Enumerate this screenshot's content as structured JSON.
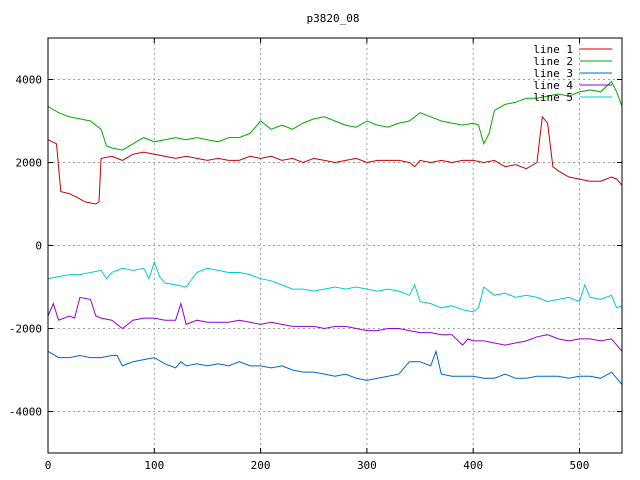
{
  "chart_data": {
    "type": "line",
    "title": "p3820_08",
    "xlabel": "",
    "ylabel": "",
    "xlim": [
      0,
      540
    ],
    "ylim": [
      -5000,
      5000
    ],
    "x_ticks": [
      0,
      100,
      200,
      300,
      400,
      500
    ],
    "y_ticks": [
      -4000,
      -2000,
      0,
      2000,
      4000
    ],
    "grid": true,
    "legend_position": "top-right",
    "series": [
      {
        "name": "line 1",
        "color": "#cc0000",
        "points": [
          [
            0,
            2550
          ],
          [
            8,
            2450
          ],
          [
            12,
            1300
          ],
          [
            20,
            1250
          ],
          [
            28,
            1150
          ],
          [
            35,
            1050
          ],
          [
            45,
            1000
          ],
          [
            48,
            1050
          ],
          [
            50,
            2100
          ],
          [
            60,
            2150
          ],
          [
            70,
            2050
          ],
          [
            80,
            2200
          ],
          [
            90,
            2250
          ],
          [
            100,
            2200
          ],
          [
            110,
            2150
          ],
          [
            120,
            2100
          ],
          [
            130,
            2150
          ],
          [
            140,
            2100
          ],
          [
            150,
            2050
          ],
          [
            160,
            2100
          ],
          [
            170,
            2050
          ],
          [
            180,
            2050
          ],
          [
            190,
            2150
          ],
          [
            200,
            2100
          ],
          [
            210,
            2150
          ],
          [
            220,
            2050
          ],
          [
            230,
            2100
          ],
          [
            240,
            2000
          ],
          [
            250,
            2100
          ],
          [
            260,
            2050
          ],
          [
            270,
            2000
          ],
          [
            280,
            2050
          ],
          [
            290,
            2100
          ],
          [
            300,
            2000
          ],
          [
            310,
            2050
          ],
          [
            320,
            2050
          ],
          [
            330,
            2050
          ],
          [
            340,
            2000
          ],
          [
            345,
            1900
          ],
          [
            350,
            2050
          ],
          [
            360,
            2000
          ],
          [
            370,
            2050
          ],
          [
            380,
            2000
          ],
          [
            390,
            2050
          ],
          [
            400,
            2050
          ],
          [
            410,
            2000
          ],
          [
            420,
            2050
          ],
          [
            430,
            1900
          ],
          [
            440,
            1950
          ],
          [
            450,
            1850
          ],
          [
            460,
            2000
          ],
          [
            465,
            3100
          ],
          [
            470,
            2950
          ],
          [
            475,
            1900
          ],
          [
            480,
            1800
          ],
          [
            490,
            1650
          ],
          [
            500,
            1600
          ],
          [
            510,
            1550
          ],
          [
            520,
            1550
          ],
          [
            530,
            1650
          ],
          [
            535,
            1600
          ],
          [
            540,
            1450
          ]
        ]
      },
      {
        "name": "line 2",
        "color": "#00aa00",
        "points": [
          [
            0,
            3350
          ],
          [
            10,
            3200
          ],
          [
            20,
            3100
          ],
          [
            30,
            3050
          ],
          [
            40,
            3000
          ],
          [
            50,
            2800
          ],
          [
            55,
            2400
          ],
          [
            60,
            2350
          ],
          [
            70,
            2300
          ],
          [
            80,
            2450
          ],
          [
            90,
            2600
          ],
          [
            100,
            2500
          ],
          [
            110,
            2550
          ],
          [
            120,
            2600
          ],
          [
            130,
            2550
          ],
          [
            140,
            2600
          ],
          [
            150,
            2550
          ],
          [
            160,
            2500
          ],
          [
            170,
            2600
          ],
          [
            180,
            2600
          ],
          [
            190,
            2700
          ],
          [
            200,
            3000
          ],
          [
            210,
            2800
          ],
          [
            220,
            2900
          ],
          [
            230,
            2800
          ],
          [
            240,
            2950
          ],
          [
            250,
            3050
          ],
          [
            260,
            3100
          ],
          [
            270,
            3000
          ],
          [
            280,
            2900
          ],
          [
            290,
            2850
          ],
          [
            300,
            3000
          ],
          [
            310,
            2900
          ],
          [
            320,
            2850
          ],
          [
            330,
            2950
          ],
          [
            340,
            3000
          ],
          [
            350,
            3200
          ],
          [
            360,
            3100
          ],
          [
            370,
            3000
          ],
          [
            380,
            2950
          ],
          [
            390,
            2900
          ],
          [
            400,
            2950
          ],
          [
            405,
            2900
          ],
          [
            410,
            2450
          ],
          [
            415,
            2700
          ],
          [
            420,
            3250
          ],
          [
            430,
            3400
          ],
          [
            440,
            3450
          ],
          [
            450,
            3550
          ],
          [
            460,
            3550
          ],
          [
            470,
            3600
          ],
          [
            480,
            3650
          ],
          [
            490,
            3600
          ],
          [
            500,
            3700
          ],
          [
            510,
            3750
          ],
          [
            520,
            3700
          ],
          [
            530,
            3950
          ],
          [
            535,
            3700
          ],
          [
            540,
            3350
          ]
        ]
      },
      {
        "name": "line 3",
        "color": "#0066cc",
        "points": [
          [
            0,
            -2550
          ],
          [
            10,
            -2700
          ],
          [
            20,
            -2700
          ],
          [
            30,
            -2650
          ],
          [
            40,
            -2700
          ],
          [
            50,
            -2700
          ],
          [
            60,
            -2650
          ],
          [
            65,
            -2650
          ],
          [
            70,
            -2900
          ],
          [
            80,
            -2800
          ],
          [
            90,
            -2750
          ],
          [
            100,
            -2700
          ],
          [
            110,
            -2850
          ],
          [
            120,
            -2950
          ],
          [
            125,
            -2800
          ],
          [
            130,
            -2900
          ],
          [
            140,
            -2850
          ],
          [
            150,
            -2900
          ],
          [
            160,
            -2850
          ],
          [
            170,
            -2900
          ],
          [
            180,
            -2800
          ],
          [
            190,
            -2900
          ],
          [
            200,
            -2900
          ],
          [
            210,
            -2950
          ],
          [
            220,
            -2900
          ],
          [
            230,
            -3000
          ],
          [
            240,
            -3050
          ],
          [
            250,
            -3050
          ],
          [
            260,
            -3100
          ],
          [
            270,
            -3150
          ],
          [
            280,
            -3100
          ],
          [
            290,
            -3200
          ],
          [
            300,
            -3250
          ],
          [
            310,
            -3200
          ],
          [
            320,
            -3150
          ],
          [
            330,
            -3100
          ],
          [
            340,
            -2800
          ],
          [
            350,
            -2800
          ],
          [
            360,
            -2900
          ],
          [
            365,
            -2550
          ],
          [
            370,
            -3100
          ],
          [
            380,
            -3150
          ],
          [
            390,
            -3150
          ],
          [
            400,
            -3150
          ],
          [
            410,
            -3200
          ],
          [
            420,
            -3200
          ],
          [
            430,
            -3100
          ],
          [
            440,
            -3200
          ],
          [
            450,
            -3200
          ],
          [
            460,
            -3150
          ],
          [
            470,
            -3150
          ],
          [
            480,
            -3150
          ],
          [
            490,
            -3200
          ],
          [
            500,
            -3150
          ],
          [
            510,
            -3150
          ],
          [
            520,
            -3200
          ],
          [
            530,
            -3050
          ],
          [
            540,
            -3350
          ]
        ]
      },
      {
        "name": "line 4",
        "color": "#9900cc",
        "points": [
          [
            0,
            -1700
          ],
          [
            5,
            -1400
          ],
          [
            10,
            -1800
          ],
          [
            20,
            -1700
          ],
          [
            25,
            -1750
          ],
          [
            30,
            -1250
          ],
          [
            40,
            -1300
          ],
          [
            45,
            -1700
          ],
          [
            50,
            -1750
          ],
          [
            60,
            -1800
          ],
          [
            70,
            -2000
          ],
          [
            80,
            -1800
          ],
          [
            90,
            -1750
          ],
          [
            100,
            -1750
          ],
          [
            110,
            -1800
          ],
          [
            120,
            -1800
          ],
          [
            125,
            -1400
          ],
          [
            130,
            -1900
          ],
          [
            140,
            -1800
          ],
          [
            150,
            -1850
          ],
          [
            160,
            -1850
          ],
          [
            170,
            -1850
          ],
          [
            180,
            -1800
          ],
          [
            190,
            -1850
          ],
          [
            200,
            -1900
          ],
          [
            210,
            -1850
          ],
          [
            220,
            -1900
          ],
          [
            230,
            -1950
          ],
          [
            240,
            -1950
          ],
          [
            250,
            -1950
          ],
          [
            260,
            -2000
          ],
          [
            270,
            -1950
          ],
          [
            280,
            -1950
          ],
          [
            290,
            -2000
          ],
          [
            300,
            -2050
          ],
          [
            310,
            -2050
          ],
          [
            320,
            -2000
          ],
          [
            330,
            -2000
          ],
          [
            340,
            -2050
          ],
          [
            350,
            -2100
          ],
          [
            360,
            -2100
          ],
          [
            370,
            -2150
          ],
          [
            380,
            -2150
          ],
          [
            390,
            -2400
          ],
          [
            395,
            -2250
          ],
          [
            400,
            -2300
          ],
          [
            410,
            -2300
          ],
          [
            420,
            -2350
          ],
          [
            430,
            -2400
          ],
          [
            440,
            -2350
          ],
          [
            450,
            -2300
          ],
          [
            460,
            -2200
          ],
          [
            470,
            -2150
          ],
          [
            480,
            -2250
          ],
          [
            490,
            -2300
          ],
          [
            500,
            -2250
          ],
          [
            510,
            -2250
          ],
          [
            520,
            -2300
          ],
          [
            530,
            -2250
          ],
          [
            535,
            -2400
          ],
          [
            540,
            -2550
          ]
        ]
      },
      {
        "name": "line 5",
        "color": "#00cccc",
        "points": [
          [
            0,
            -800
          ],
          [
            10,
            -750
          ],
          [
            20,
            -700
          ],
          [
            30,
            -700
          ],
          [
            40,
            -650
          ],
          [
            50,
            -600
          ],
          [
            55,
            -800
          ],
          [
            60,
            -650
          ],
          [
            70,
            -550
          ],
          [
            80,
            -600
          ],
          [
            90,
            -550
          ],
          [
            95,
            -800
          ],
          [
            100,
            -400
          ],
          [
            105,
            -750
          ],
          [
            110,
            -900
          ],
          [
            120,
            -950
          ],
          [
            130,
            -1000
          ],
          [
            140,
            -650
          ],
          [
            150,
            -550
          ],
          [
            160,
            -600
          ],
          [
            170,
            -650
          ],
          [
            180,
            -650
          ],
          [
            190,
            -700
          ],
          [
            200,
            -800
          ],
          [
            210,
            -850
          ],
          [
            220,
            -950
          ],
          [
            230,
            -1050
          ],
          [
            240,
            -1050
          ],
          [
            250,
            -1100
          ],
          [
            260,
            -1050
          ],
          [
            270,
            -1000
          ],
          [
            280,
            -1050
          ],
          [
            290,
            -1000
          ],
          [
            300,
            -1050
          ],
          [
            310,
            -1100
          ],
          [
            320,
            -1050
          ],
          [
            330,
            -1100
          ],
          [
            340,
            -1200
          ],
          [
            345,
            -950
          ],
          [
            350,
            -1350
          ],
          [
            360,
            -1400
          ],
          [
            370,
            -1500
          ],
          [
            380,
            -1450
          ],
          [
            390,
            -1550
          ],
          [
            400,
            -1600
          ],
          [
            405,
            -1500
          ],
          [
            410,
            -1000
          ],
          [
            420,
            -1200
          ],
          [
            430,
            -1150
          ],
          [
            440,
            -1250
          ],
          [
            450,
            -1200
          ],
          [
            460,
            -1250
          ],
          [
            470,
            -1350
          ],
          [
            480,
            -1300
          ],
          [
            490,
            -1250
          ],
          [
            500,
            -1350
          ],
          [
            505,
            -950
          ],
          [
            510,
            -1250
          ],
          [
            520,
            -1300
          ],
          [
            530,
            -1200
          ],
          [
            535,
            -1500
          ],
          [
            540,
            -1450
          ]
        ]
      }
    ]
  }
}
